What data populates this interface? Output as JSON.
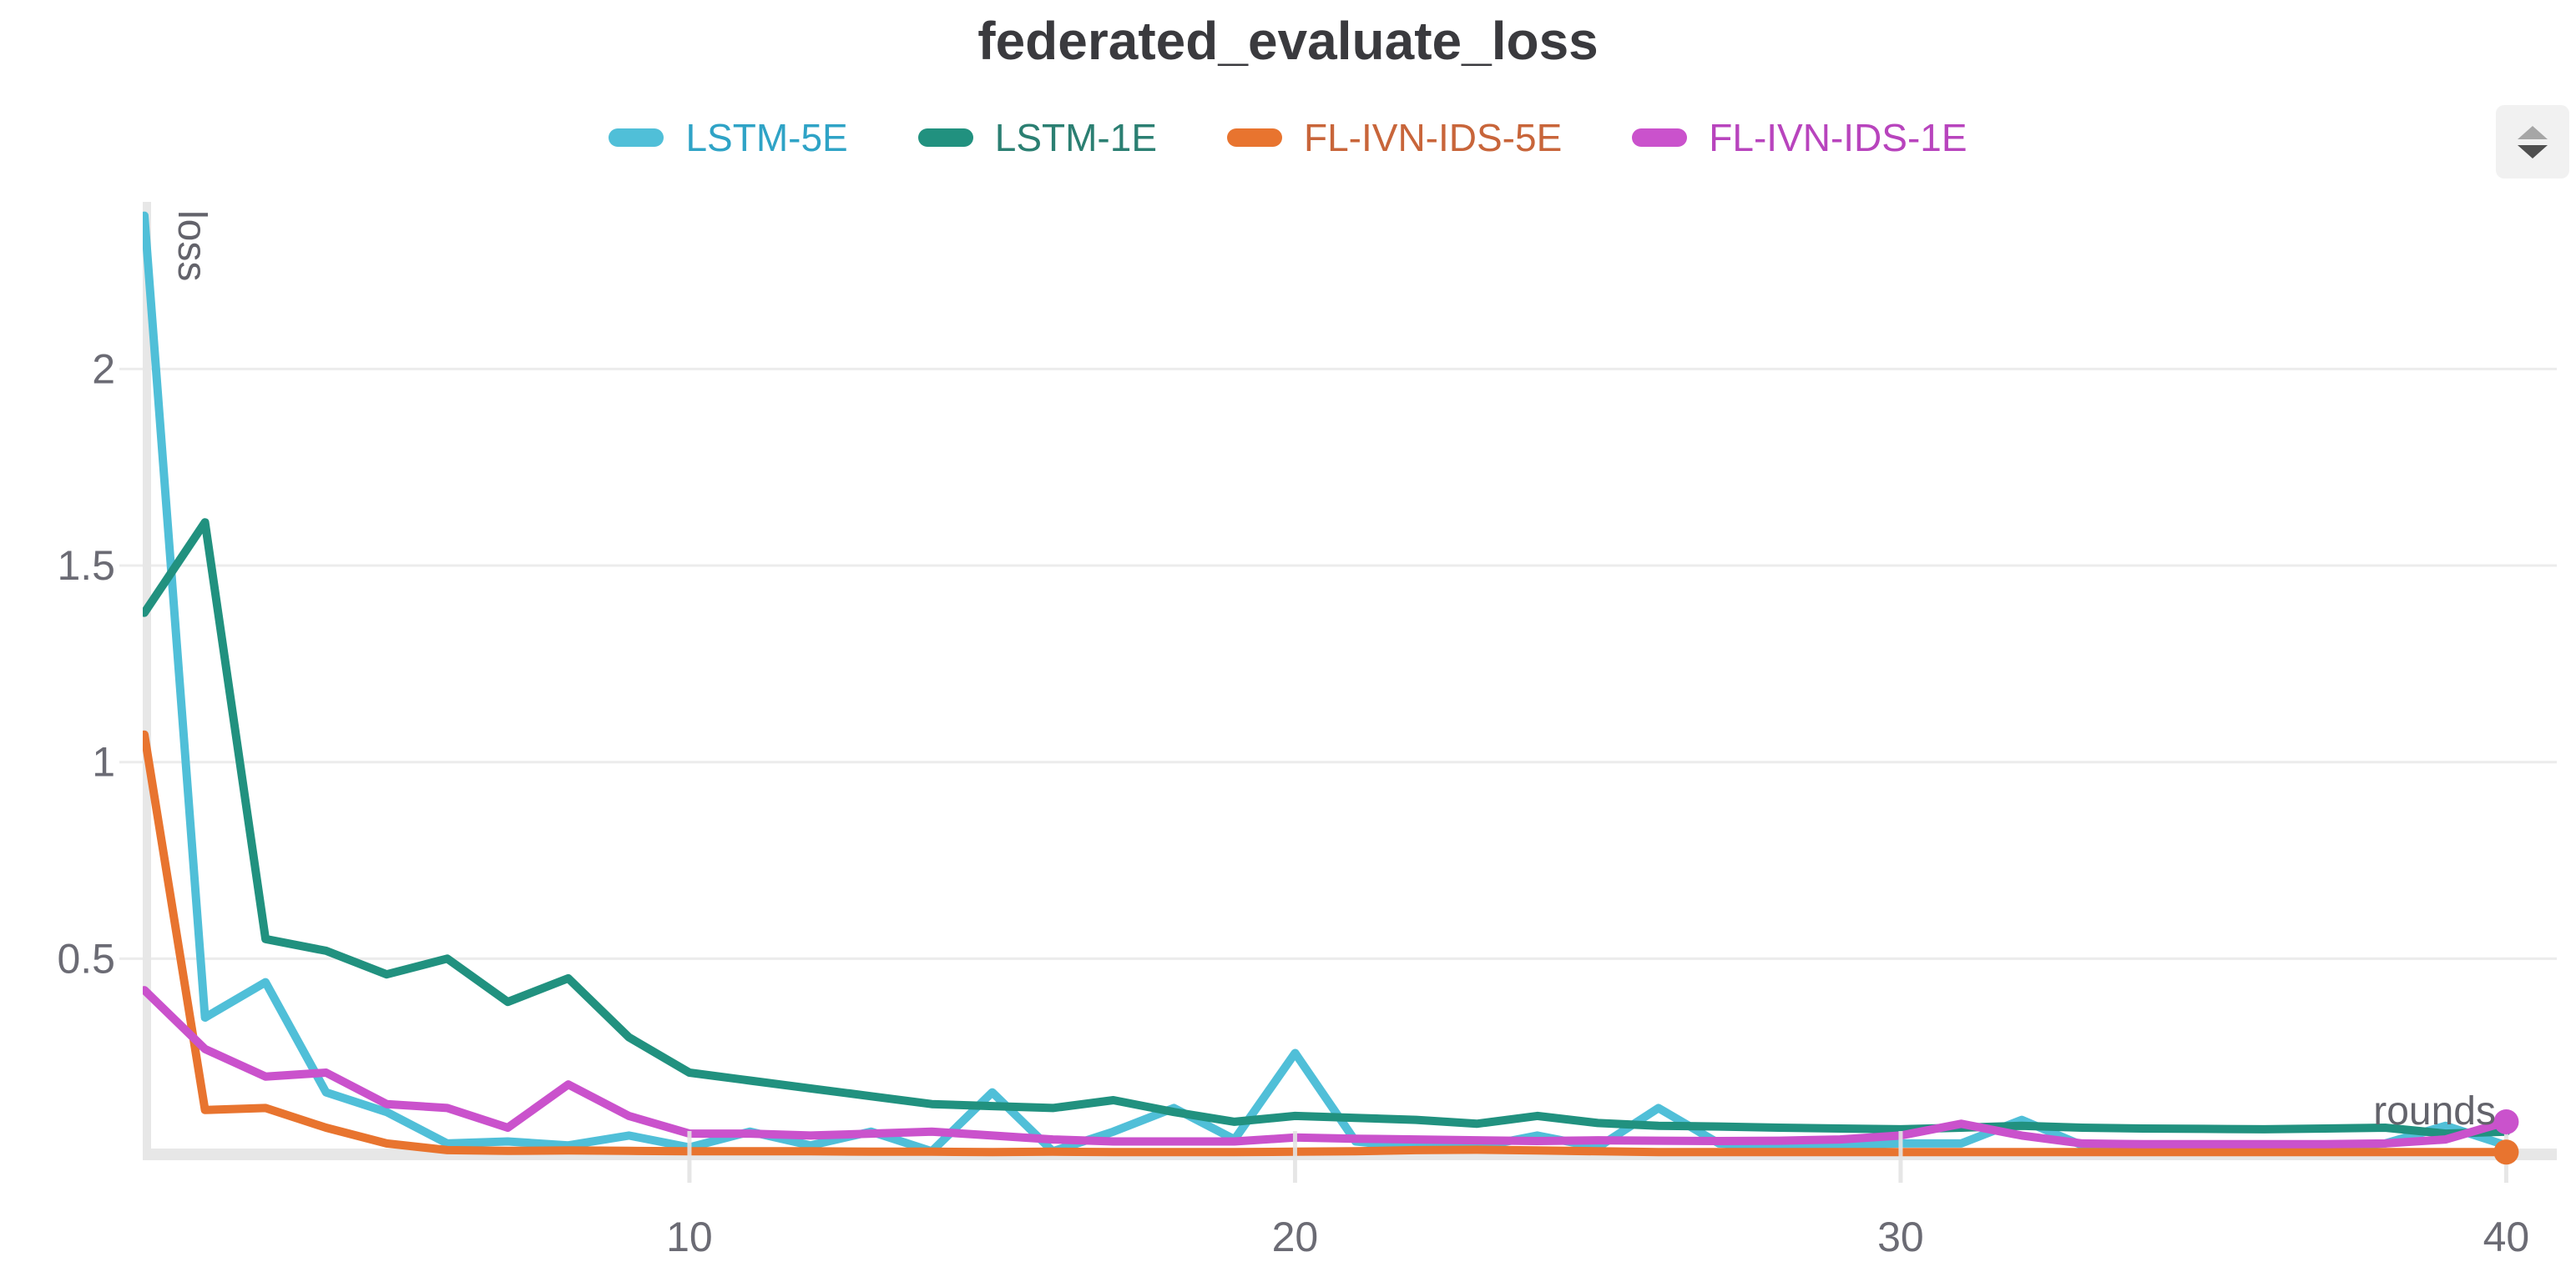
{
  "title": "federated_evaluate_loss",
  "sorter": {
    "icon": "up-down-arrows"
  },
  "legend": {
    "items": [
      {
        "label": "LSTM-5E"
      },
      {
        "label": "LSTM-1E"
      },
      {
        "label": "FL-IVN-IDS-5E"
      },
      {
        "label": "FL-IVN-IDS-1E"
      }
    ]
  },
  "chart_data": {
    "type": "line",
    "title": "federated_evaluate_loss",
    "xlabel": "rounds",
    "ylabel": "loss",
    "xlim": [
      1,
      40
    ],
    "ylim": [
      0,
      2.43
    ],
    "x_ticks": [
      10,
      20,
      30,
      40
    ],
    "y_ticks": [
      0.5,
      1,
      1.5,
      2
    ],
    "grid": "horizontal",
    "legend_position": "top",
    "x": [
      1,
      2,
      3,
      4,
      5,
      6,
      7,
      8,
      9,
      10,
      11,
      12,
      13,
      14,
      15,
      16,
      17,
      18,
      19,
      20,
      21,
      22,
      23,
      24,
      25,
      26,
      27,
      28,
      29,
      30,
      31,
      32,
      33,
      34,
      35,
      36,
      37,
      38,
      39,
      40
    ],
    "series": [
      {
        "name": "LSTM-5E",
        "color": "#50bfd8",
        "text_color": "#2fa3c6",
        "end_marker": false,
        "values": [
          2.39,
          0.35,
          0.44,
          0.16,
          0.11,
          0.03,
          0.035,
          0.025,
          0.05,
          0.02,
          0.06,
          0.025,
          0.06,
          0.01,
          0.16,
          0.01,
          0.06,
          0.12,
          0.04,
          0.26,
          0.035,
          0.02,
          0.02,
          0.05,
          0.02,
          0.12,
          0.03,
          0.02,
          0.025,
          0.03,
          0.03,
          0.09,
          0.025,
          0.02,
          0.02,
          0.02,
          0.02,
          0.03,
          0.075,
          0.025
        ]
      },
      {
        "name": "LSTM-1E",
        "color": "#21917f",
        "text_color": "#2b7f72",
        "end_marker": false,
        "values": [
          1.38,
          1.61,
          0.55,
          0.52,
          0.46,
          0.5,
          0.39,
          0.45,
          0.3,
          0.21,
          0.19,
          0.17,
          0.15,
          0.13,
          0.125,
          0.12,
          0.14,
          0.11,
          0.085,
          0.1,
          0.095,
          0.09,
          0.08,
          0.1,
          0.082,
          0.075,
          0.073,
          0.07,
          0.068,
          0.066,
          0.07,
          0.075,
          0.07,
          0.068,
          0.067,
          0.066,
          0.068,
          0.07,
          0.055,
          0.06
        ]
      },
      {
        "name": "FL-IVN-IDS-5E",
        "color": "#e8742f",
        "text_color": "#c8653a",
        "end_marker": true,
        "values": [
          1.07,
          0.115,
          0.12,
          0.07,
          0.03,
          0.013,
          0.011,
          0.012,
          0.011,
          0.01,
          0.01,
          0.01,
          0.009,
          0.009,
          0.008,
          0.009,
          0.008,
          0.008,
          0.008,
          0.009,
          0.01,
          0.013,
          0.014,
          0.012,
          0.01,
          0.008,
          0.008,
          0.008,
          0.008,
          0.008,
          0.008,
          0.008,
          0.008,
          0.008,
          0.008,
          0.008,
          0.008,
          0.008,
          0.008,
          0.008
        ]
      },
      {
        "name": "FL-IVN-IDS-1E",
        "color": "#ca52cc",
        "text_color": "#b844bd",
        "end_marker": true,
        "values": [
          0.42,
          0.27,
          0.2,
          0.21,
          0.13,
          0.12,
          0.07,
          0.18,
          0.1,
          0.055,
          0.055,
          0.05,
          0.055,
          0.06,
          0.05,
          0.04,
          0.035,
          0.035,
          0.035,
          0.045,
          0.042,
          0.04,
          0.038,
          0.036,
          0.038,
          0.037,
          0.036,
          0.037,
          0.04,
          0.05,
          0.08,
          0.05,
          0.03,
          0.028,
          0.028,
          0.028,
          0.028,
          0.03,
          0.04,
          0.085
        ]
      }
    ]
  }
}
